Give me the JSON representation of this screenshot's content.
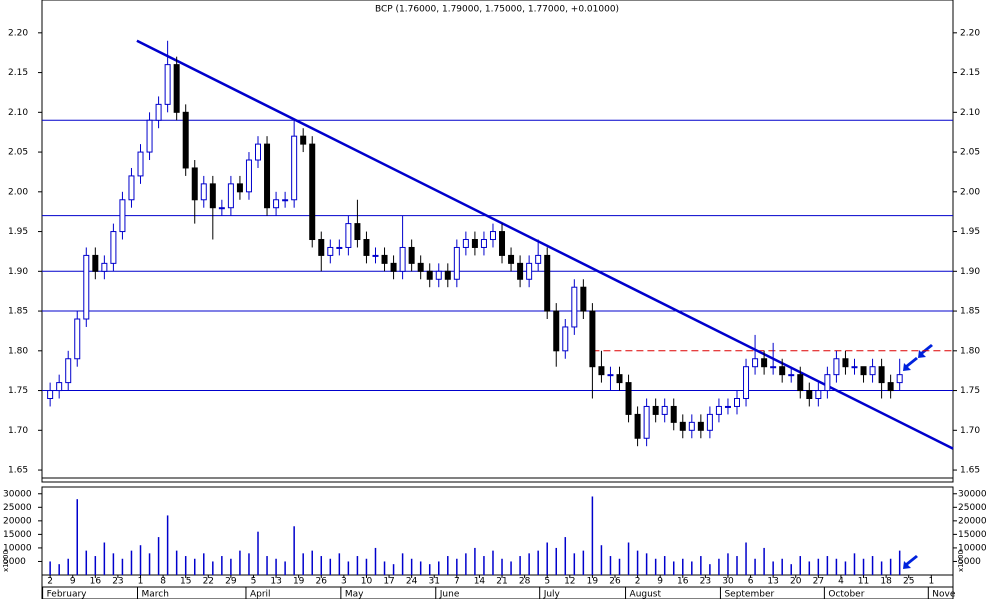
{
  "chart_data": {
    "type": "candlestick",
    "title": "BCP (1.76000, 1.79000, 1.75000, 1.77000, +0.01000)",
    "x": [
      0,
      2,
      4,
      6,
      8,
      10,
      12,
      14,
      16,
      18,
      20,
      22,
      24,
      26,
      28,
      30,
      32,
      34,
      36,
      38,
      40,
      42,
      44,
      46,
      48,
      50,
      52,
      54,
      56,
      58,
      60,
      62,
      64,
      66,
      68,
      70,
      72,
      74,
      76,
      78,
      80,
      82,
      84,
      86,
      88,
      90,
      92,
      94,
      96,
      98,
      100,
      102,
      104,
      106,
      108,
      110,
      112,
      114,
      116,
      118,
      120,
      122,
      124,
      126,
      128,
      130,
      132,
      134,
      136,
      138,
      140,
      142,
      144,
      146,
      148,
      150,
      152,
      154,
      156,
      158,
      160,
      162,
      164,
      166,
      168,
      170,
      172,
      174,
      176,
      178,
      180,
      182,
      184,
      186,
      188
    ],
    "open": [
      1.74,
      1.75,
      1.76,
      1.79,
      1.84,
      1.92,
      1.9,
      1.91,
      1.95,
      1.99,
      2.02,
      2.05,
      2.09,
      2.11,
      2.16,
      2.1,
      2.03,
      1.99,
      2.01,
      1.98,
      1.98,
      2.01,
      2.0,
      2.04,
      2.06,
      1.98,
      1.99,
      1.99,
      2.07,
      2.06,
      1.94,
      1.92,
      1.93,
      1.93,
      1.96,
      1.94,
      1.92,
      1.92,
      1.91,
      1.9,
      1.93,
      1.91,
      1.9,
      1.89,
      1.9,
      1.89,
      1.93,
      1.94,
      1.93,
      1.94,
      1.95,
      1.92,
      1.91,
      1.89,
      1.91,
      1.92,
      1.85,
      1.8,
      1.83,
      1.88,
      1.85,
      1.78,
      1.77,
      1.77,
      1.76,
      1.72,
      1.69,
      1.73,
      1.72,
      1.73,
      1.71,
      1.7,
      1.71,
      1.7,
      1.72,
      1.73,
      1.73,
      1.74,
      1.78,
      1.79,
      1.78,
      1.78,
      1.77,
      1.77,
      1.75,
      1.74,
      1.75,
      1.77,
      1.79,
      1.78,
      1.78,
      1.77,
      1.78,
      1.76,
      1.76
    ],
    "high": [
      1.76,
      1.77,
      1.8,
      1.85,
      1.93,
      1.93,
      1.92,
      1.96,
      2.0,
      2.03,
      2.06,
      2.1,
      2.12,
      2.19,
      2.17,
      2.11,
      2.04,
      2.02,
      2.02,
      1.99,
      2.02,
      2.02,
      2.05,
      2.07,
      2.07,
      2.0,
      2.0,
      2.09,
      2.08,
      2.07,
      1.95,
      1.94,
      1.94,
      1.97,
      1.99,
      1.95,
      1.93,
      1.93,
      1.92,
      1.97,
      1.94,
      1.92,
      1.91,
      1.91,
      1.91,
      1.94,
      1.95,
      1.95,
      1.95,
      1.96,
      1.96,
      1.93,
      1.92,
      1.92,
      1.94,
      1.93,
      1.86,
      1.84,
      1.89,
      1.89,
      1.86,
      1.8,
      1.78,
      1.78,
      1.77,
      1.73,
      1.74,
      1.74,
      1.74,
      1.74,
      1.72,
      1.72,
      1.72,
      1.73,
      1.74,
      1.74,
      1.75,
      1.79,
      1.82,
      1.8,
      1.81,
      1.79,
      1.78,
      1.78,
      1.76,
      1.76,
      1.78,
      1.8,
      1.8,
      1.79,
      1.78,
      1.79,
      1.79,
      1.77,
      1.79
    ],
    "low": [
      1.73,
      1.74,
      1.75,
      1.78,
      1.83,
      1.89,
      1.89,
      1.9,
      1.94,
      1.98,
      2.01,
      2.04,
      2.08,
      2.1,
      2.09,
      2.02,
      1.96,
      1.98,
      1.94,
      1.97,
      1.97,
      1.99,
      1.99,
      2.03,
      1.97,
      1.97,
      1.98,
      1.98,
      2.05,
      1.93,
      1.9,
      1.91,
      1.92,
      1.92,
      1.93,
      1.91,
      1.91,
      1.9,
      1.89,
      1.89,
      1.9,
      1.89,
      1.88,
      1.88,
      1.88,
      1.88,
      1.92,
      1.92,
      1.92,
      1.93,
      1.91,
      1.9,
      1.88,
      1.88,
      1.9,
      1.84,
      1.78,
      1.79,
      1.82,
      1.84,
      1.74,
      1.76,
      1.75,
      1.75,
      1.71,
      1.68,
      1.68,
      1.71,
      1.71,
      1.7,
      1.69,
      1.69,
      1.69,
      1.69,
      1.71,
      1.72,
      1.72,
      1.73,
      1.77,
      1.77,
      1.77,
      1.76,
      1.76,
      1.74,
      1.73,
      1.73,
      1.74,
      1.76,
      1.77,
      1.77,
      1.76,
      1.76,
      1.74,
      1.74,
      1.75
    ],
    "close": [
      1.75,
      1.76,
      1.79,
      1.84,
      1.92,
      1.9,
      1.91,
      1.95,
      1.99,
      2.02,
      2.05,
      2.09,
      2.11,
      2.16,
      2.1,
      2.03,
      1.99,
      2.01,
      1.98,
      1.98,
      2.01,
      2.0,
      2.04,
      2.06,
      1.98,
      1.99,
      1.99,
      2.07,
      2.06,
      1.94,
      1.92,
      1.93,
      1.93,
      1.96,
      1.94,
      1.92,
      1.92,
      1.91,
      1.9,
      1.93,
      1.91,
      1.9,
      1.89,
      1.9,
      1.89,
      1.93,
      1.94,
      1.93,
      1.94,
      1.95,
      1.92,
      1.91,
      1.89,
      1.91,
      1.92,
      1.85,
      1.8,
      1.83,
      1.88,
      1.85,
      1.78,
      1.77,
      1.77,
      1.76,
      1.72,
      1.69,
      1.73,
      1.72,
      1.73,
      1.71,
      1.7,
      1.71,
      1.7,
      1.72,
      1.73,
      1.73,
      1.74,
      1.78,
      1.79,
      1.78,
      1.78,
      1.77,
      1.77,
      1.75,
      1.74,
      1.75,
      1.77,
      1.79,
      1.78,
      1.78,
      1.77,
      1.78,
      1.76,
      1.75,
      1.77
    ],
    "volume": [
      5000,
      4000,
      6000,
      28000,
      9000,
      7000,
      12000,
      8000,
      6000,
      9000,
      11000,
      8000,
      14000,
      22000,
      9000,
      7000,
      6000,
      8000,
      5000,
      7000,
      6000,
      9000,
      8000,
      16000,
      7000,
      6000,
      5000,
      18000,
      8000,
      9000,
      7000,
      6000,
      8000,
      5000,
      7000,
      6000,
      10000,
      5000,
      4000,
      8000,
      6000,
      5000,
      4000,
      5000,
      7000,
      6000,
      8000,
      10000,
      7000,
      9000,
      6000,
      5000,
      7000,
      8000,
      9000,
      12000,
      10000,
      14000,
      8000,
      9000,
      29000,
      11000,
      7000,
      6000,
      12000,
      9000,
      8000,
      6000,
      7000,
      5000,
      6000,
      5000,
      7000,
      4000,
      6000,
      8000,
      7000,
      12000,
      6000,
      10000,
      5000,
      6000,
      4000,
      7000,
      5000,
      6000,
      7000,
      6000,
      5000,
      8000,
      6000,
      7000,
      5000,
      6000,
      9000
    ],
    "up_color": "#0000cc",
    "down_color": "#000000",
    "line_color": "#0000cc",
    "xlim": [
      -1.8,
      199.8
    ],
    "xticks": [
      {
        "value": 0,
        "label": "2"
      },
      {
        "value": 5,
        "label": "9"
      },
      {
        "value": 10,
        "label": "16"
      },
      {
        "value": 15,
        "label": "23"
      },
      {
        "value": 20,
        "label": "1"
      },
      {
        "value": 25,
        "label": "8"
      },
      {
        "value": 30,
        "label": "15"
      },
      {
        "value": 35,
        "label": "22"
      },
      {
        "value": 40,
        "label": "29"
      },
      {
        "value": 45,
        "label": "5"
      },
      {
        "value": 50,
        "label": "13"
      },
      {
        "value": 55,
        "label": "19"
      },
      {
        "value": 60,
        "label": "26"
      },
      {
        "value": 65,
        "label": "3"
      },
      {
        "value": 70,
        "label": "10"
      },
      {
        "value": 75,
        "label": "17"
      },
      {
        "value": 80,
        "label": "24"
      },
      {
        "value": 85,
        "label": "31"
      },
      {
        "value": 90,
        "label": "7"
      },
      {
        "value": 95,
        "label": "14"
      },
      {
        "value": 100,
        "label": "21"
      },
      {
        "value": 105,
        "label": "28"
      },
      {
        "value": 110,
        "label": "5"
      },
      {
        "value": 115,
        "label": "12"
      },
      {
        "value": 120,
        "label": "19"
      },
      {
        "value": 125,
        "label": "26"
      },
      {
        "value": 130,
        "label": "2"
      },
      {
        "value": 135,
        "label": "9"
      },
      {
        "value": 140,
        "label": "16"
      },
      {
        "value": 145,
        "label": "23"
      },
      {
        "value": 150,
        "label": "30"
      },
      {
        "value": 155,
        "label": "6"
      },
      {
        "value": 160,
        "label": "13"
      },
      {
        "value": 165,
        "label": "20"
      },
      {
        "value": 170,
        "label": "27"
      },
      {
        "value": 175,
        "label": "4"
      },
      {
        "value": 180,
        "label": "11"
      },
      {
        "value": 185,
        "label": "18"
      },
      {
        "value": 190,
        "label": "25"
      },
      {
        "value": 195,
        "label": "1"
      }
    ],
    "months": [
      {
        "value": -1,
        "label": "February"
      },
      {
        "value": 20,
        "label": "March"
      },
      {
        "value": 44,
        "label": "April"
      },
      {
        "value": 65,
        "label": "May"
      },
      {
        "value": 86,
        "label": "June"
      },
      {
        "value": 109,
        "label": "July"
      },
      {
        "value": 128,
        "label": "August"
      },
      {
        "value": 149,
        "label": "September"
      },
      {
        "value": 172,
        "label": "October"
      },
      {
        "value": 195,
        "label": "Nove"
      }
    ],
    "ylim": [
      1.64,
      2.235
    ],
    "yticks": [
      1.65,
      {
        "value": 1.7,
        "label": "1.70"
      },
      1.75,
      {
        "value": 1.8,
        "label": "1.80"
      },
      1.85,
      {
        "value": 1.9,
        "label": "1.90"
      },
      1.95,
      {
        "value": 2.0,
        "label": "2.00"
      },
      2.05,
      {
        "value": 2.1,
        "label": "2.10"
      },
      2.15,
      {
        "value": 2.2,
        "label": "2.20"
      }
    ],
    "volume_ylim": [
      0,
      32500
    ],
    "volume_yticks": [
      5000,
      10000,
      15000,
      20000,
      25000,
      30000
    ],
    "volume_unit_label": "x1000",
    "levels": [
      2.09,
      1.97,
      1.9,
      1.85,
      1.75
    ],
    "resistance": {
      "value": 1.8,
      "x": [
        120,
        199.8
      ],
      "color": "#dd0000"
    },
    "trendline": {
      "x": [
        19.2,
        199.8
      ],
      "y": [
        2.19,
        1.677
      ]
    }
  }
}
